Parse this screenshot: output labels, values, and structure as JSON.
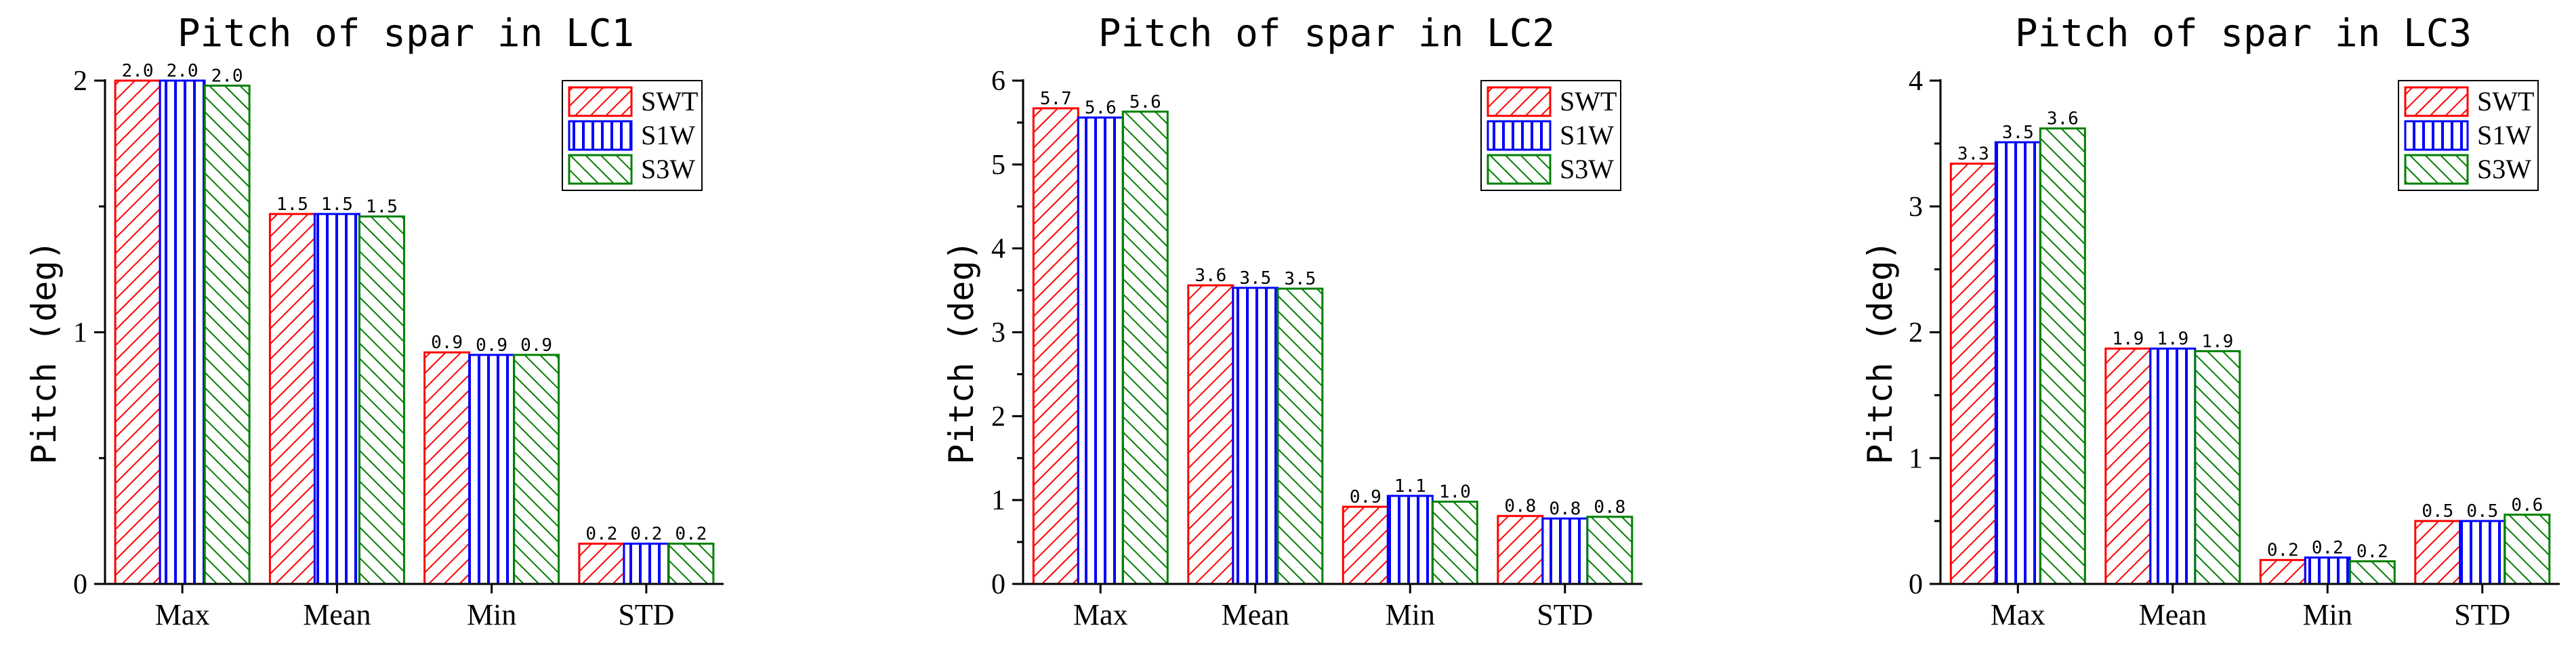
{
  "chart_data": [
    {
      "type": "bar",
      "title": "Pitch of spar in LC1",
      "xlabel": "",
      "ylabel": "Pitch (deg)",
      "categories": [
        "Max",
        "Mean",
        "Min",
        "STD"
      ],
      "ylim": [
        0,
        2
      ],
      "yticks": [
        "0",
        "1",
        "2"
      ],
      "legend_position": "top-right",
      "series": [
        {
          "name": "SWT",
          "color": "#ff0000",
          "pattern": "diagonal-right",
          "values": [
            2.0,
            1.47,
            0.92,
            0.16
          ],
          "labels": [
            "2.0",
            "1.5",
            "0.9",
            "0.2"
          ]
        },
        {
          "name": "S1W",
          "color": "#0000ff",
          "pattern": "vertical",
          "values": [
            2.0,
            1.47,
            0.91,
            0.16
          ],
          "labels": [
            "2.0",
            "1.5",
            "0.9",
            "0.2"
          ]
        },
        {
          "name": "S3W",
          "color": "#008000",
          "pattern": "diagonal-left",
          "values": [
            1.98,
            1.46,
            0.91,
            0.16
          ],
          "labels": [
            "2.0",
            "1.5",
            "0.9",
            "0.2"
          ]
        }
      ]
    },
    {
      "type": "bar",
      "title": "Pitch of spar in LC2",
      "xlabel": "",
      "ylabel": "Pitch (deg)",
      "categories": [
        "Max",
        "Mean",
        "Min",
        "STD"
      ],
      "ylim": [
        0,
        6
      ],
      "yticks": [
        "0",
        "1",
        "2",
        "3",
        "4",
        "5",
        "6"
      ],
      "legend_position": "top-right",
      "series": [
        {
          "name": "SWT",
          "color": "#ff0000",
          "pattern": "diagonal-right",
          "values": [
            5.67,
            3.56,
            0.92,
            0.81
          ],
          "labels": [
            "5.7",
            "3.6",
            "0.9",
            "0.8"
          ]
        },
        {
          "name": "S1W",
          "color": "#0000ff",
          "pattern": "vertical",
          "values": [
            5.56,
            3.53,
            1.05,
            0.78
          ],
          "labels": [
            "5.6",
            "3.5",
            "1.1",
            "0.8"
          ]
        },
        {
          "name": "S3W",
          "color": "#008000",
          "pattern": "diagonal-left",
          "values": [
            5.63,
            3.52,
            0.98,
            0.8
          ],
          "labels": [
            "5.6",
            "3.5",
            "1.0",
            "0.8"
          ]
        }
      ]
    },
    {
      "type": "bar",
      "title": "Pitch of spar in LC3",
      "xlabel": "",
      "ylabel": "Pitch (deg)",
      "categories": [
        "Max",
        "Mean",
        "Min",
        "STD"
      ],
      "ylim": [
        0,
        4
      ],
      "yticks": [
        "0",
        "1",
        "2",
        "3",
        "4"
      ],
      "legend_position": "top-right",
      "series": [
        {
          "name": "SWT",
          "color": "#ff0000",
          "pattern": "diagonal-right",
          "values": [
            3.34,
            1.87,
            0.19,
            0.5
          ],
          "labels": [
            "3.3",
            "1.9",
            "0.2",
            "0.5"
          ]
        },
        {
          "name": "S1W",
          "color": "#0000ff",
          "pattern": "vertical",
          "values": [
            3.51,
            1.87,
            0.21,
            0.5
          ],
          "labels": [
            "3.5",
            "1.9",
            "0.2",
            "0.5"
          ]
        },
        {
          "name": "S3W",
          "color": "#008000",
          "pattern": "diagonal-left",
          "values": [
            3.62,
            1.85,
            0.18,
            0.55
          ],
          "labels": [
            "3.6",
            "1.9",
            "0.2",
            "0.6"
          ]
        }
      ]
    }
  ]
}
